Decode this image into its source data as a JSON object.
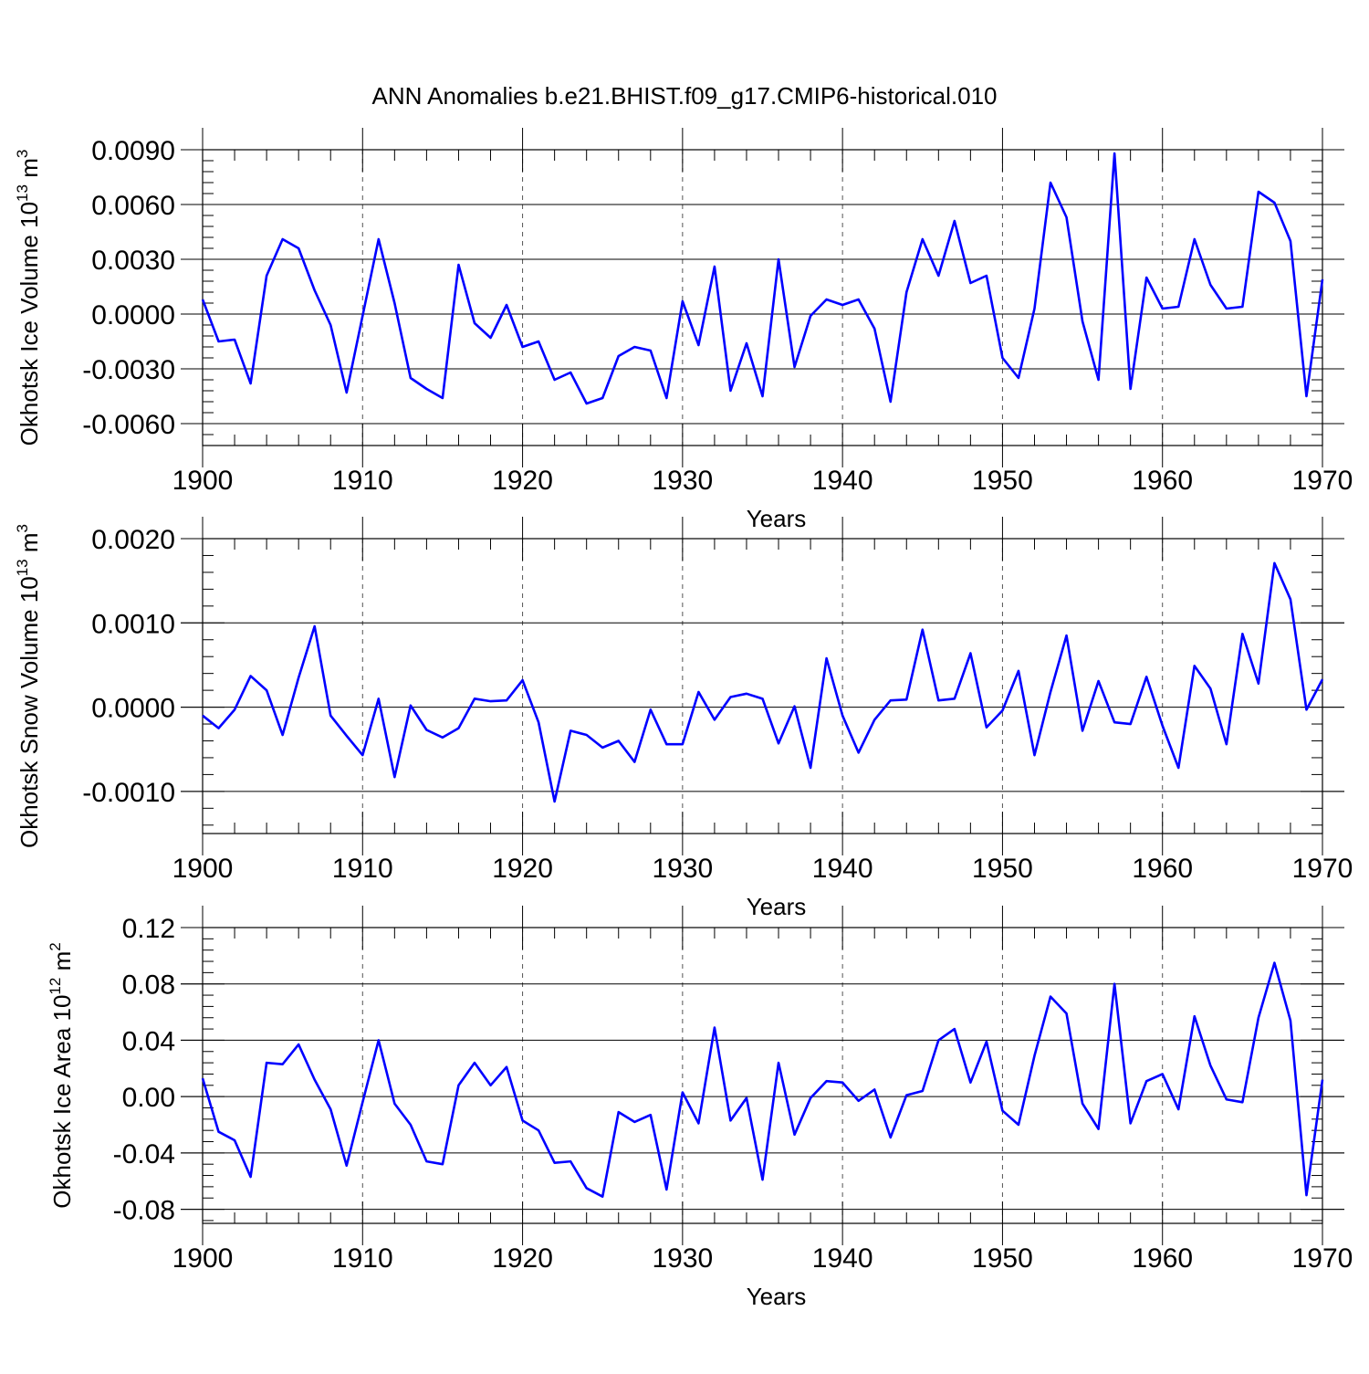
{
  "chart_data": {
    "type": "line",
    "title": "ANN Anomalies b.e21.BHIST.f09_g17.CMIP6-historical.010",
    "x": [
      1900,
      1901,
      1902,
      1903,
      1904,
      1905,
      1906,
      1907,
      1908,
      1909,
      1910,
      1911,
      1912,
      1913,
      1914,
      1915,
      1916,
      1917,
      1918,
      1919,
      1920,
      1921,
      1922,
      1923,
      1924,
      1925,
      1926,
      1927,
      1928,
      1929,
      1930,
      1931,
      1932,
      1933,
      1934,
      1935,
      1936,
      1937,
      1938,
      1939,
      1940,
      1941,
      1942,
      1943,
      1944,
      1945,
      1946,
      1947,
      1948,
      1949,
      1950,
      1951,
      1952,
      1953,
      1954,
      1955,
      1956,
      1957,
      1958,
      1959,
      1960,
      1961,
      1962,
      1963,
      1964,
      1965,
      1966,
      1967,
      1968,
      1969,
      1970
    ],
    "panels": [
      {
        "name": "ice-volume",
        "ylabel": "Okhotsk Ice Volume",
        "units_base": "10",
        "units_exp": "13",
        "units_unit": "m",
        "units_unit_exp": "3",
        "xlabel": "Years",
        "xlim": [
          1900,
          1970
        ],
        "xticks": [
          "1900",
          "1910",
          "1920",
          "1930",
          "1940",
          "1950",
          "1960",
          "1970"
        ],
        "ylim": [
          -0.0072,
          0.009
        ],
        "yticks": [
          -0.006,
          -0.003,
          0.0,
          0.003,
          0.006,
          0.009
        ],
        "ytick_labels": [
          "-0.0060",
          "-0.0030",
          "0.0000",
          "0.0030",
          "0.0060",
          "0.0090"
        ],
        "grid": "vertical-dashed",
        "values": [
          0.0008,
          -0.0015,
          -0.0014,
          -0.0038,
          0.0021,
          0.0041,
          0.0036,
          0.0013,
          -0.0006,
          -0.0043,
          -0.0001,
          0.0041,
          0.0006,
          -0.0035,
          -0.0041,
          -0.0046,
          0.0027,
          -0.0005,
          -0.0013,
          0.0005,
          -0.0018,
          -0.0015,
          -0.0036,
          -0.0032,
          -0.0049,
          -0.0046,
          -0.0023,
          -0.0018,
          -0.002,
          -0.0046,
          0.0007,
          -0.0017,
          0.0026,
          -0.0042,
          -0.0016,
          -0.0045,
          0.003,
          -0.0029,
          -0.0001,
          0.0008,
          0.0005,
          0.0008,
          -0.0008,
          -0.0048,
          0.0012,
          0.0041,
          0.0021,
          0.0051,
          0.0017,
          0.0021,
          -0.0024,
          -0.0035,
          0.0003,
          0.0072,
          0.0053,
          -0.0004,
          -0.0036,
          0.0088,
          -0.0041,
          0.002,
          0.0003,
          0.0004,
          0.0041,
          0.0016,
          0.0003,
          0.0004,
          0.0067,
          0.0061,
          0.004,
          -0.0045,
          0.0019
        ]
      },
      {
        "name": "snow-volume",
        "ylabel": "Okhotsk Snow Volume",
        "units_base": "10",
        "units_exp": "13",
        "units_unit": "m",
        "units_unit_exp": "3",
        "xlabel": "Years",
        "xlim": [
          1900,
          1970
        ],
        "xticks": [
          "1900",
          "1910",
          "1920",
          "1930",
          "1940",
          "1950",
          "1960",
          "1970"
        ],
        "ylim": [
          -0.0015,
          0.002
        ],
        "yticks": [
          -0.001,
          0.0,
          0.001,
          0.002
        ],
        "ytick_labels": [
          "-0.0010",
          "0.0000",
          "0.0010",
          "0.0020"
        ],
        "grid": "vertical-dashed",
        "values": [
          -0.0001,
          -0.00025,
          -3e-05,
          0.00037,
          0.0002,
          -0.00033,
          0.00035,
          0.00096,
          -0.0001,
          -0.00034,
          -0.00057,
          0.0001,
          -0.00083,
          2e-05,
          -0.00027,
          -0.00036,
          -0.00025,
          0.0001,
          7e-05,
          8e-05,
          0.00032,
          -0.00018,
          -0.00112,
          -0.00028,
          -0.00033,
          -0.00048,
          -0.0004,
          -0.00065,
          -3e-05,
          -0.00044,
          -0.00044,
          0.00018,
          -0.00015,
          0.00012,
          0.00016,
          0.0001,
          -0.00043,
          1e-05,
          -0.00072,
          0.00058,
          -0.0001,
          -0.00054,
          -0.00015,
          8e-05,
          9e-05,
          0.00092,
          8e-05,
          0.0001,
          0.00064,
          -0.00024,
          -4e-05,
          0.00043,
          -0.00057,
          0.00018,
          0.00085,
          -0.00028,
          0.00031,
          -0.00018,
          -0.0002,
          0.00036,
          -0.00022,
          -0.00072,
          0.00049,
          0.00022,
          -0.00044,
          0.00087,
          0.00028,
          0.00171,
          0.00128,
          -3e-05,
          0.00033
        ]
      },
      {
        "name": "ice-area",
        "ylabel": "Okhotsk Ice Area",
        "units_base": "10",
        "units_exp": "12",
        "units_unit": "m",
        "units_unit_exp": "2",
        "xlabel": "Years",
        "xlim": [
          1900,
          1970
        ],
        "xticks": [
          "1900",
          "1910",
          "1920",
          "1930",
          "1940",
          "1950",
          "1960",
          "1970"
        ],
        "ylim": [
          -0.09,
          0.12
        ],
        "yticks": [
          -0.08,
          -0.04,
          0.0,
          0.04,
          0.08,
          0.12
        ],
        "ytick_labels": [
          "-0.08",
          "-0.04",
          "0.00",
          "0.04",
          "0.08",
          "0.12"
        ],
        "grid": "vertical-dashed",
        "values": [
          0.013,
          -0.025,
          -0.031,
          -0.057,
          0.024,
          0.023,
          0.037,
          0.012,
          -0.009,
          -0.049,
          -0.004,
          0.04,
          -0.005,
          -0.02,
          -0.046,
          -0.048,
          0.008,
          0.024,
          0.008,
          0.021,
          -0.017,
          -0.024,
          -0.047,
          -0.046,
          -0.065,
          -0.071,
          -0.011,
          -0.018,
          -0.013,
          -0.066,
          0.003,
          -0.019,
          0.049,
          -0.017,
          -0.001,
          -0.059,
          0.024,
          -0.027,
          -0.001,
          0.011,
          0.01,
          -0.003,
          0.005,
          -0.029,
          0.001,
          0.004,
          0.04,
          0.048,
          0.01,
          0.039,
          -0.01,
          -0.02,
          0.029,
          0.071,
          0.059,
          -0.005,
          -0.023,
          0.08,
          -0.019,
          0.011,
          0.016,
          -0.009,
          0.057,
          0.022,
          -0.002,
          -0.004,
          0.056,
          0.095,
          0.054,
          -0.07,
          0.012
        ]
      }
    ]
  }
}
